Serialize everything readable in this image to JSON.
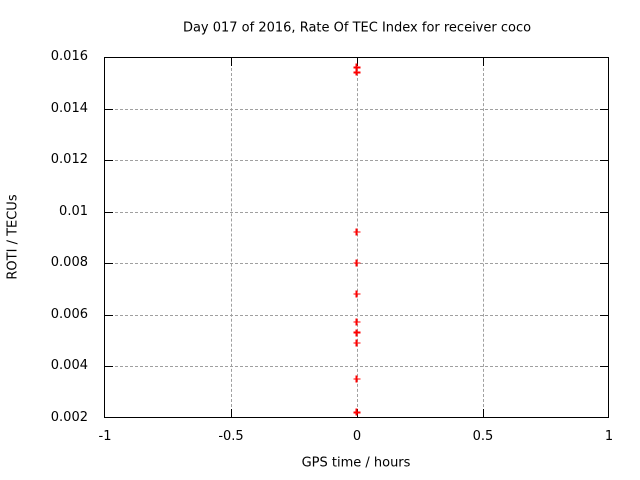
{
  "window": {
    "background": "#ffffff"
  },
  "chart_data": {
    "type": "scatter",
    "title": "Day 017 of 2016, Rate Of TEC Index for receiver coco",
    "xlabel": "GPS time / hours",
    "ylabel": "ROTI / TECUs",
    "xlim": [
      -1,
      1
    ],
    "ylim": [
      0.002,
      0.016
    ],
    "grid": true,
    "legend": "none",
    "xticks": [
      {
        "value": -1,
        "label": "-1"
      },
      {
        "value": -0.5,
        "label": "-0.5"
      },
      {
        "value": 0,
        "label": "0"
      },
      {
        "value": 0.5,
        "label": "0.5"
      },
      {
        "value": 1,
        "label": "1"
      }
    ],
    "yticks": [
      {
        "value": 0.002,
        "label": "0.002"
      },
      {
        "value": 0.004,
        "label": "0.004"
      },
      {
        "value": 0.006,
        "label": "0.006"
      },
      {
        "value": 0.008,
        "label": "0.008"
      },
      {
        "value": 0.01,
        "label": "0.01"
      },
      {
        "value": 0.012,
        "label": "0.012"
      },
      {
        "value": 0.014,
        "label": "0.014"
      },
      {
        "value": 0.016,
        "label": "0.016"
      }
    ],
    "series": [
      {
        "name": "ROTI",
        "marker": "plus",
        "color": "#ff0000",
        "points": [
          {
            "x": 0,
            "y": 0.0156
          },
          {
            "x": 0,
            "y": 0.0154
          },
          {
            "x": 0,
            "y": 0.0092
          },
          {
            "x": 0,
            "y": 0.008
          },
          {
            "x": 0,
            "y": 0.0068
          },
          {
            "x": 0,
            "y": 0.0057
          },
          {
            "x": 0,
            "y": 0.0053
          },
          {
            "x": 0,
            "y": 0.0049
          },
          {
            "x": 0,
            "y": 0.0035
          },
          {
            "x": 0,
            "y": 0.0022
          }
        ]
      }
    ],
    "colors": {
      "grid": "#a0a0a0",
      "axis": "#000000",
      "text": "#000000",
      "marker": "#ff0000"
    }
  }
}
